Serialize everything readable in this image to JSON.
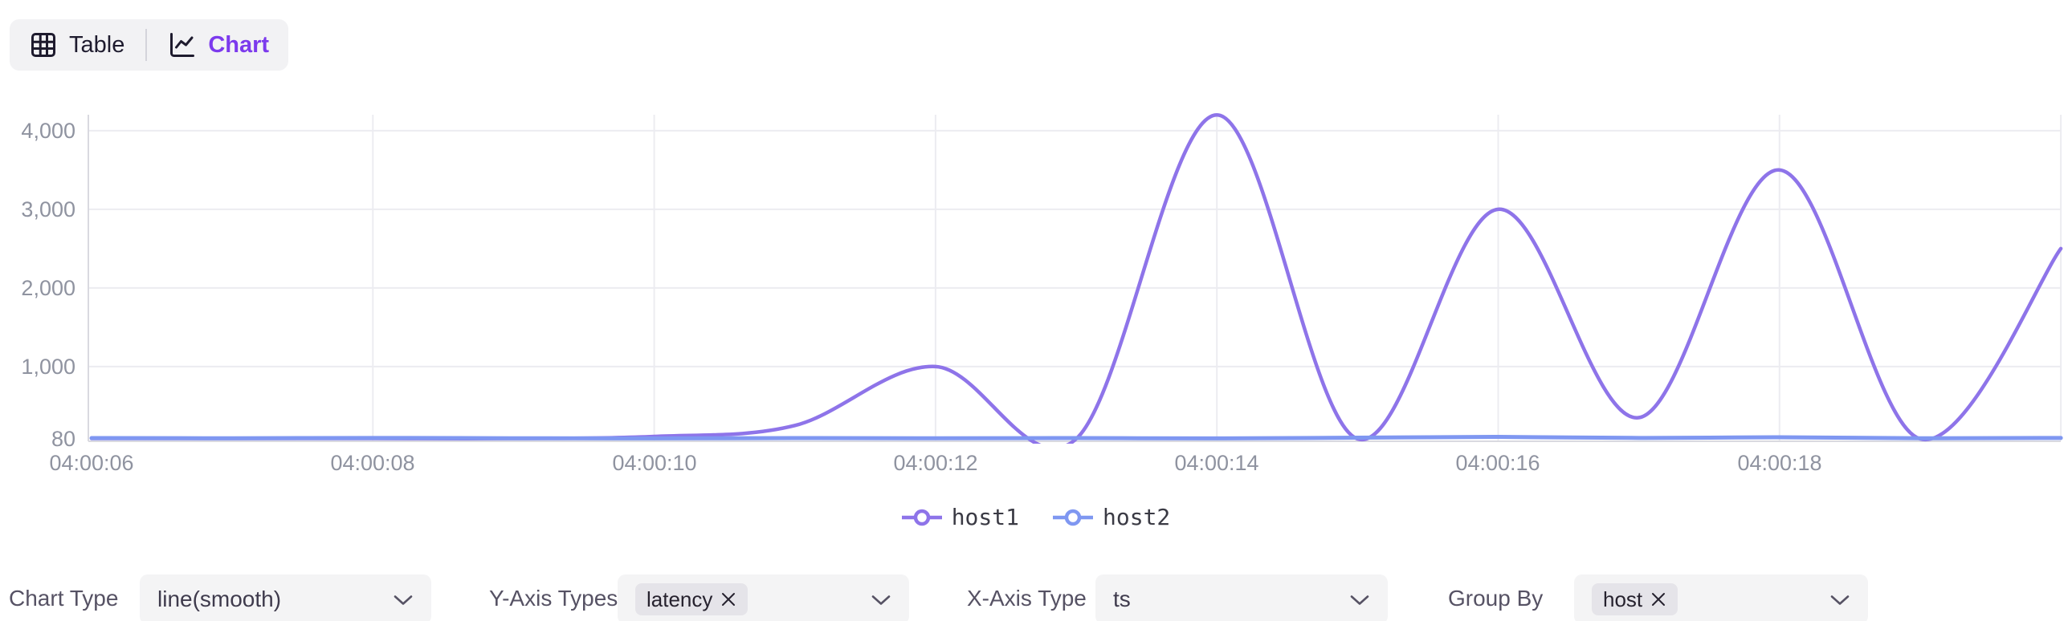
{
  "toggle": {
    "table_label": "Table",
    "chart_label": "Chart",
    "active": "Chart"
  },
  "icons": {
    "table": "table-grid-icon",
    "chart": "line-chart-icon",
    "chevron": "chevron-down-icon",
    "remove": "x-close-icon",
    "legend_marker": "line-with-circle"
  },
  "colors": {
    "accent": "#7c3aed",
    "host1": "#8e74e9",
    "host2": "#7f97f1",
    "control_bg": "#f4f4f5",
    "tag_bg": "#e5e4e9",
    "grid_line": "#ececf1",
    "axis_line": "#d9d9e0",
    "tick_text": "#8f93a0"
  },
  "chart_data": {
    "type": "line",
    "smooth": true,
    "title": "",
    "xlabel": "",
    "ylabel": "",
    "x": [
      "04:00:06",
      "04:00:07",
      "04:00:08",
      "04:00:09",
      "04:00:10",
      "04:00:11",
      "04:00:12",
      "04:00:13",
      "04:00:14",
      "04:00:15",
      "04:00:16",
      "04:00:17",
      "04:00:18",
      "04:00:19",
      "04:00:20"
    ],
    "x_ticks": [
      "04:00:06",
      "04:00:08",
      "04:00:10",
      "04:00:12",
      "04:00:14",
      "04:00:16",
      "04:00:18"
    ],
    "y_ticks": [
      "4,000",
      "3,000",
      "2,000",
      "1,000",
      "80"
    ],
    "y_tick_values": [
      4000,
      3000,
      2000,
      1000,
      80
    ],
    "ylim": [
      80,
      4200
    ],
    "grid": true,
    "legend_position": "bottom",
    "series": [
      {
        "name": "host1",
        "color": "#8e74e9",
        "values": [
          85,
          85,
          85,
          85,
          110,
          250,
          1000,
          80,
          4200,
          80,
          3000,
          350,
          3500,
          80,
          2500
        ]
      },
      {
        "name": "host2",
        "color": "#7f97f1",
        "values": [
          90,
          88,
          92,
          88,
          86,
          90,
          88,
          90,
          86,
          95,
          105,
          92,
          100,
          88,
          92
        ]
      }
    ]
  },
  "controls": {
    "chart_type": {
      "label": "Chart Type",
      "value": "line(smooth)"
    },
    "y_axis_types": {
      "label": "Y-Axis Types",
      "tags": [
        "latency"
      ]
    },
    "x_axis_type": {
      "label": "X-Axis Type",
      "value": "ts"
    },
    "group_by": {
      "label": "Group By",
      "tags": [
        "host"
      ]
    }
  }
}
